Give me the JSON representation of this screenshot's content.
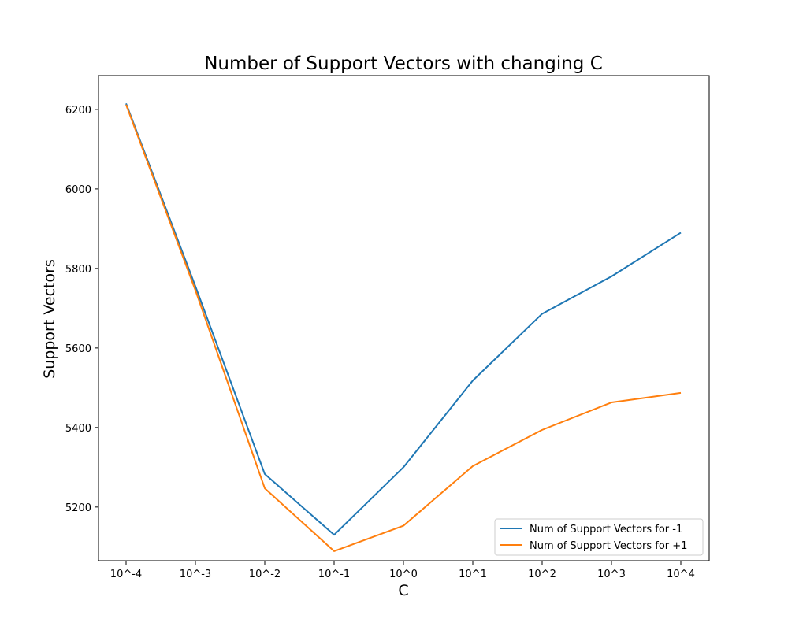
{
  "chart_data": {
    "type": "line",
    "title": "Number of Support Vectors with changing C",
    "xlabel": "C",
    "ylabel": "Support Vectors",
    "categories": [
      "10^-4",
      "10^-3",
      "10^-2",
      "10^-1",
      "10^0",
      "10^1",
      "10^2",
      "10^3",
      "10^4"
    ],
    "yticks": [
      5200,
      5400,
      5600,
      5800,
      6000,
      6200
    ],
    "ylim": [
      5065,
      6285
    ],
    "grid": false,
    "legend_position": "lower-right",
    "series": [
      {
        "name": "Num of Support Vectors for -1",
        "color": "#1f77b4",
        "values": [
          6215,
          5755,
          5283,
          5130,
          5300,
          5518,
          5686,
          5780,
          5890
        ]
      },
      {
        "name": "Num of Support Vectors for +1",
        "color": "#ff7f0e",
        "values": [
          6212,
          5745,
          5247,
          5089,
          5153,
          5303,
          5394,
          5463,
          5487
        ]
      }
    ]
  }
}
